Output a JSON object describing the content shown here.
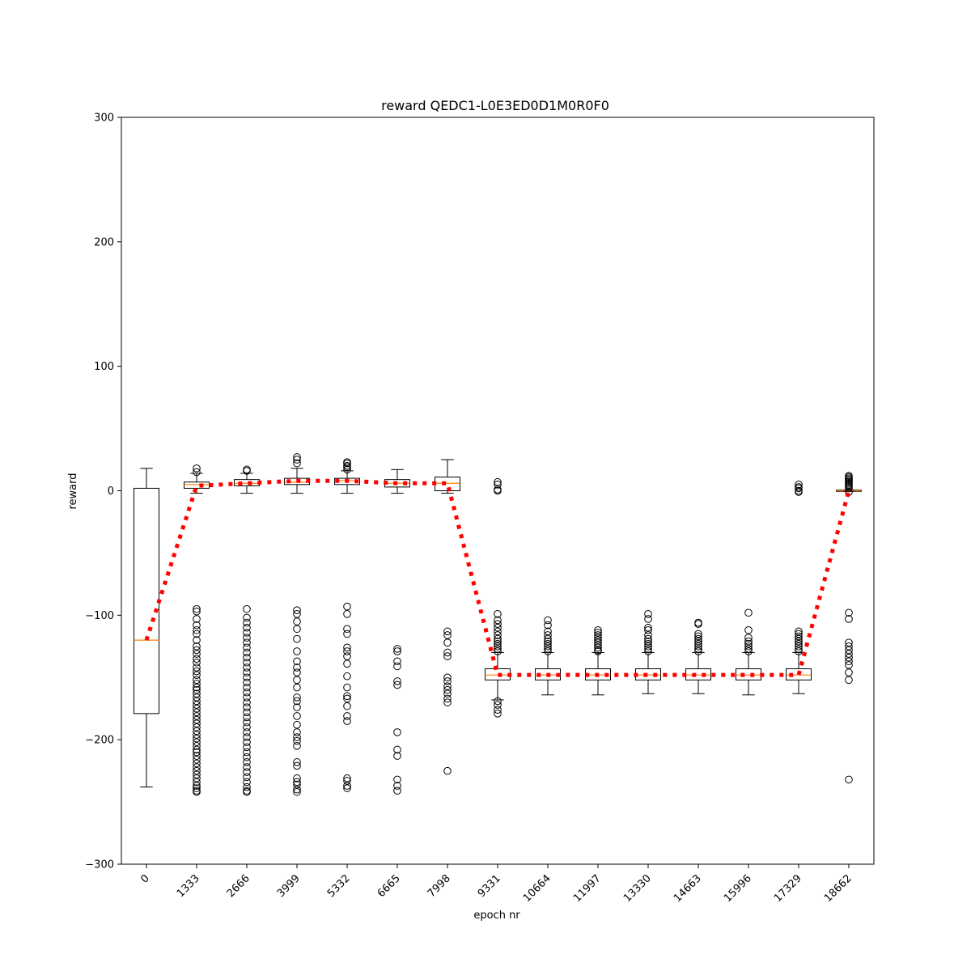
{
  "chart_data": {
    "type": "box",
    "title": "reward QEDC1-L0E3ED0D1M0R0F0",
    "xlabel": "epoch nr",
    "ylabel": "reward",
    "ylim": [
      -300,
      300
    ],
    "yticks": [
      -300,
      -200,
      -100,
      0,
      100,
      200,
      300
    ],
    "grid": false,
    "legend": "none",
    "x_tick_rotation_deg": 45,
    "categories": [
      "0",
      "1333",
      "2666",
      "3999",
      "5332",
      "6665",
      "7998",
      "9331",
      "10664",
      "11997",
      "13330",
      "14663",
      "15996",
      "17329",
      "18662"
    ],
    "boxes": [
      {
        "whislo": -238,
        "q1": -179,
        "med": -120,
        "q3": 2,
        "whishi": 18,
        "fliers": []
      },
      {
        "whislo": -2,
        "q1": 2,
        "med": 5,
        "q3": 7,
        "whishi": 14,
        "fliers": [
          15,
          18,
          -95,
          -97,
          -103,
          -108,
          -112,
          -115,
          -120,
          -125,
          -128,
          -131,
          -135,
          -138,
          -142,
          -145,
          -148,
          -152,
          -155,
          -158,
          -160,
          -163,
          -166,
          -169,
          -172,
          -175,
          -178,
          -181,
          -184,
          -187,
          -190,
          -193,
          -196,
          -199,
          -202,
          -205,
          -208,
          -210,
          -213,
          -216,
          -219,
          -222,
          -225,
          -228,
          -231,
          -234,
          -237,
          -239,
          -241,
          -242
        ]
      },
      {
        "whislo": -2,
        "q1": 4,
        "med": 6,
        "q3": 9,
        "whishi": 14,
        "fliers": [
          16,
          17,
          -95,
          -102,
          -106,
          -110,
          -114,
          -118,
          -122,
          -126,
          -130,
          -134,
          -138,
          -142,
          -146,
          -150,
          -154,
          -158,
          -162,
          -166,
          -170,
          -174,
          -178,
          -182,
          -186,
          -190,
          -194,
          -198,
          -202,
          -206,
          -210,
          -214,
          -218,
          -222,
          -226,
          -230,
          -234,
          -238,
          -241,
          -242
        ]
      },
      {
        "whislo": -2,
        "q1": 5,
        "med": 7,
        "q3": 10,
        "whishi": 18,
        "fliers": [
          22,
          25,
          27,
          -96,
          -99,
          -105,
          -111,
          -119,
          -129,
          -137,
          -142,
          -146,
          -152,
          -158,
          -166,
          -169,
          -174,
          -181,
          -188,
          -194,
          -198,
          -201,
          -205,
          -218,
          -221,
          -231,
          -234,
          -236,
          -240,
          -242
        ]
      },
      {
        "whislo": -2,
        "q1": 5,
        "med": 8,
        "q3": 10,
        "whishi": 16,
        "fliers": [
          17,
          19,
          20,
          22,
          23,
          -93,
          -99,
          -111,
          -115,
          -126,
          -129,
          -133,
          -139,
          -149,
          -158,
          -165,
          -167,
          -173,
          -181,
          -185,
          -231,
          -233,
          -237,
          -239
        ]
      },
      {
        "whislo": -2,
        "q1": 3,
        "med": 6,
        "q3": 9,
        "whishi": 17,
        "fliers": [
          -127,
          -129,
          -137,
          -141,
          -153,
          -156,
          -194,
          -208,
          -213,
          -232,
          -237,
          -241
        ]
      },
      {
        "whislo": -2,
        "q1": 0,
        "med": 6,
        "q3": 11,
        "whishi": 25,
        "fliers": [
          -113,
          -116,
          -122,
          -130,
          -133,
          -150,
          -153,
          -157,
          -160,
          -163,
          -167,
          -170,
          -225
        ]
      },
      {
        "whislo": -168,
        "q1": -152,
        "med": -148,
        "q3": -143,
        "whishi": -130,
        "fliers": [
          7,
          5,
          1,
          0,
          -99,
          -104,
          -107,
          -110,
          -113,
          -116,
          -119,
          -121,
          -123,
          -125,
          -127,
          -129,
          -169,
          -172,
          -176,
          -179
        ]
      },
      {
        "whislo": -164,
        "q1": -152,
        "med": -148,
        "q3": -143,
        "whishi": -130,
        "fliers": [
          -104,
          -108,
          -113,
          -116,
          -119,
          -121,
          -123,
          -125,
          -127,
          -129
        ]
      },
      {
        "whislo": -164,
        "q1": -152,
        "med": -148,
        "q3": -143,
        "whishi": -130,
        "fliers": [
          -112,
          -114,
          -116,
          -118,
          -120,
          -122,
          -124,
          -126,
          -128,
          -129
        ]
      },
      {
        "whislo": -163,
        "q1": -152,
        "med": -148,
        "q3": -143,
        "whishi": -130,
        "fliers": [
          -99,
          -103,
          -110,
          -112,
          -116,
          -119,
          -121,
          -123,
          -125,
          -127,
          -129
        ]
      },
      {
        "whislo": -163,
        "q1": -152,
        "med": -148,
        "q3": -143,
        "whishi": -130,
        "fliers": [
          -106,
          -107,
          -115,
          -117,
          -119,
          -121,
          -123,
          -125,
          -127,
          -129
        ]
      },
      {
        "whislo": -164,
        "q1": -152,
        "med": -148,
        "q3": -143,
        "whishi": -130,
        "fliers": [
          -98,
          -112,
          -118,
          -121,
          -123,
          -125,
          -127,
          -129
        ]
      },
      {
        "whislo": -163,
        "q1": -152,
        "med": -148,
        "q3": -143,
        "whishi": -130,
        "fliers": [
          5,
          3,
          2,
          0,
          -1,
          -113,
          -115,
          -117,
          -119,
          -121,
          -123,
          -125,
          -127,
          -129
        ]
      },
      {
        "whislo": -0.5,
        "q1": -0.5,
        "med": 0,
        "q3": 0.5,
        "whishi": 0.5,
        "fliers": [
          12,
          11,
          10,
          9,
          8,
          7,
          6,
          5,
          4,
          3,
          2,
          -1,
          -98,
          -103,
          -122,
          -125,
          -128,
          -131,
          -134,
          -137,
          -140,
          -146,
          -152,
          -232
        ]
      }
    ],
    "mean_line": {
      "color": "#ff0000",
      "style": "dotted",
      "values": [
        -120,
        4,
        6,
        8,
        8,
        6,
        6,
        -148,
        -148,
        -148,
        -148,
        -148,
        -148,
        -148,
        0
      ]
    },
    "median_color": "#ff7f0e"
  }
}
